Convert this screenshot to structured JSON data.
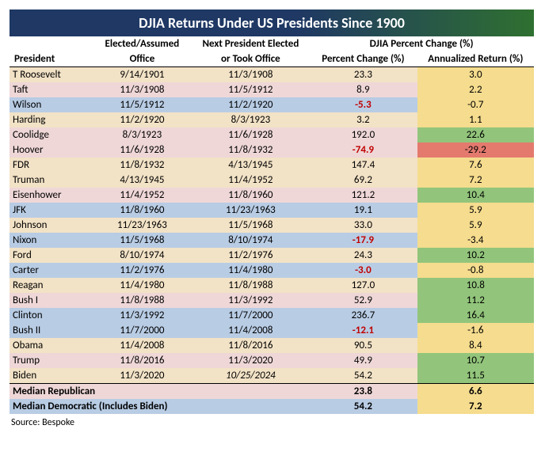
{
  "title": "DJIA Returns Under US Presidents Since 1900",
  "headers": {
    "president": "President",
    "office_top": "Elected/Assumed",
    "office_bot": "Office",
    "next_top": "Next President Elected",
    "next_bot": "or Took Office",
    "group": "DJIA Percent Change (%)",
    "pct": "Percent Change (%)",
    "ann": "Annualized Return (%)"
  },
  "colors": {
    "row_blue": "#b8cce4",
    "row_pink": "#efd7d7",
    "row_tan": "#f2e2c6",
    "cell_yellow": "#f5dc8e",
    "cell_green": "#92c57b",
    "cell_red": "#e47a6e",
    "cell_blank": "#ffffff"
  },
  "column_widths": [
    "110px",
    "130px",
    "150px",
    "140px",
    "150px"
  ],
  "rows": [
    {
      "president": "T Roosevelt",
      "d1": "9/14/1901",
      "d2": "11/3/1908",
      "pct": "23.3",
      "ann": "3.0",
      "row_bg": "row_tan",
      "ann_bg": "cell_yellow"
    },
    {
      "president": "Taft",
      "d1": "11/3/1908",
      "d2": "11/5/1912",
      "pct": "8.9",
      "ann": "2.2",
      "row_bg": "row_pink",
      "ann_bg": "cell_yellow"
    },
    {
      "president": "Wilson",
      "d1": "11/5/1912",
      "d2": "11/2/1920",
      "pct": "-5.3",
      "ann": "-0.7",
      "row_bg": "row_blue",
      "ann_bg": "cell_yellow",
      "neg": true
    },
    {
      "president": "Harding",
      "d1": "11/2/1920",
      "d2": "8/3/1923",
      "pct": "3.2",
      "ann": "1.1",
      "row_bg": "row_tan",
      "ann_bg": "cell_yellow"
    },
    {
      "president": "Coolidge",
      "d1": "8/3/1923",
      "d2": "11/6/1928",
      "pct": "192.0",
      "ann": "22.6",
      "row_bg": "row_pink",
      "ann_bg": "cell_green"
    },
    {
      "president": "Hoover",
      "d1": "11/6/1928",
      "d2": "11/8/1932",
      "pct": "-74.9",
      "ann": "-29.2",
      "row_bg": "row_pink",
      "ann_bg": "cell_red",
      "neg": true
    },
    {
      "president": "FDR",
      "d1": "11/8/1932",
      "d2": "4/13/1945",
      "pct": "147.4",
      "ann": "7.6",
      "row_bg": "row_tan",
      "ann_bg": "cell_yellow"
    },
    {
      "president": "Truman",
      "d1": "4/13/1945",
      "d2": "11/4/1952",
      "pct": "69.2",
      "ann": "7.2",
      "row_bg": "row_tan",
      "ann_bg": "cell_yellow"
    },
    {
      "president": "Eisenhower",
      "d1": "11/4/1952",
      "d2": "11/8/1960",
      "pct": "121.2",
      "ann": "10.4",
      "row_bg": "row_pink",
      "ann_bg": "cell_green"
    },
    {
      "president": "JFK",
      "d1": "11/8/1960",
      "d2": "11/23/1963",
      "pct": "19.1",
      "ann": "5.9",
      "row_bg": "row_blue",
      "ann_bg": "cell_yellow"
    },
    {
      "president": "Johnson",
      "d1": "11/23/1963",
      "d2": "11/5/1968",
      "pct": "33.0",
      "ann": "5.9",
      "row_bg": "row_tan",
      "ann_bg": "cell_yellow"
    },
    {
      "president": "Nixon",
      "d1": "11/5/1968",
      "d2": "8/10/1974",
      "pct": "-17.9",
      "ann": "-3.4",
      "row_bg": "row_blue",
      "ann_bg": "cell_yellow",
      "neg": true
    },
    {
      "president": "Ford",
      "d1": "8/10/1974",
      "d2": "11/2/1976",
      "pct": "24.3",
      "ann": "10.2",
      "row_bg": "row_tan",
      "ann_bg": "cell_green"
    },
    {
      "president": "Carter",
      "d1": "11/2/1976",
      "d2": "11/4/1980",
      "pct": "-3.0",
      "ann": "-0.8",
      "row_bg": "row_blue",
      "ann_bg": "cell_yellow",
      "neg": true
    },
    {
      "president": "Reagan",
      "d1": "11/4/1980",
      "d2": "11/8/1988",
      "pct": "127.0",
      "ann": "10.8",
      "row_bg": "row_tan",
      "ann_bg": "cell_green"
    },
    {
      "president": "Bush I",
      "d1": "11/8/1988",
      "d2": "11/3/1992",
      "pct": "52.9",
      "ann": "11.2",
      "row_bg": "row_pink",
      "ann_bg": "cell_green"
    },
    {
      "president": "Clinton",
      "d1": "11/3/1992",
      "d2": "11/7/2000",
      "pct": "236.7",
      "ann": "16.4",
      "row_bg": "row_blue",
      "ann_bg": "cell_green"
    },
    {
      "president": "Bush II",
      "d1": "11/7/2000",
      "d2": "11/4/2008",
      "pct": "-12.1",
      "ann": "-1.6",
      "row_bg": "row_blue",
      "ann_bg": "cell_yellow",
      "neg": true
    },
    {
      "president": "Obama",
      "d1": "11/4/2008",
      "d2": "11/8/2016",
      "pct": "90.5",
      "ann": "8.4",
      "row_bg": "row_tan",
      "ann_bg": "cell_yellow"
    },
    {
      "president": "Trump",
      "d1": "11/8/2016",
      "d2": "11/3/2020",
      "pct": "49.9",
      "ann": "10.7",
      "row_bg": "row_pink",
      "ann_bg": "cell_green"
    },
    {
      "president": "Biden",
      "d1": "11/3/2020",
      "d2": "10/25/2024",
      "pct": "54.2",
      "ann": "11.5",
      "row_bg": "row_tan",
      "ann_bg": "cell_green",
      "d2_italic": true
    }
  ],
  "summary": [
    {
      "label": "Median Republican",
      "pct": "23.8",
      "ann": "6.6",
      "row_bg": "row_pink",
      "ann_bg": "cell_yellow"
    },
    {
      "label": "Median Democratic (Includes Biden)",
      "pct": "54.2",
      "ann": "7.2",
      "row_bg": "row_blue",
      "ann_bg": "cell_yellow"
    }
  ],
  "source_label": "Source: Bespoke"
}
